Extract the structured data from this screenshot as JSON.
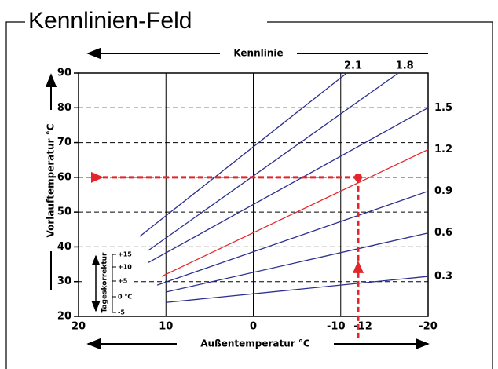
{
  "chart_data": {
    "type": "line",
    "title": "Kennlinien-Feld",
    "curve_label": "Kennlinie",
    "x_label": "Außentemperatur °C",
    "y_label": "Vorlauftemperatur °C",
    "xlim": [
      20,
      -20
    ],
    "ylim": [
      20,
      90
    ],
    "xticks": [
      20,
      10,
      0,
      -10,
      -20
    ],
    "yticks": [
      20,
      30,
      40,
      50,
      60,
      70,
      80,
      90
    ],
    "vertical_grid": [
      10,
      0,
      -10
    ],
    "dashed_grid": [
      30,
      40,
      50,
      60,
      70,
      80
    ],
    "series": [
      {
        "name": "2.1",
        "color": "#2b2f8f",
        "x": [
          13,
          -10.7
        ],
        "values": [
          43,
          90
        ]
      },
      {
        "name": "1.8",
        "color": "#2b2f8f",
        "x": [
          12,
          -16.6
        ],
        "values": [
          39,
          90
        ]
      },
      {
        "name": "1.5",
        "color": "#2b2f8f",
        "x": [
          12,
          -20
        ],
        "values": [
          35.5,
          80
        ]
      },
      {
        "name": "1.2",
        "color": "#e3262b",
        "x": [
          10.5,
          -20
        ],
        "values": [
          31.5,
          68
        ]
      },
      {
        "name": "0.9",
        "color": "#2b2f8f",
        "x": [
          11,
          -20
        ],
        "values": [
          29,
          56
        ]
      },
      {
        "name": "0.6",
        "color": "#2b2f8f",
        "x": [
          10,
          -20
        ],
        "values": [
          27,
          44
        ]
      },
      {
        "name": "0.3",
        "color": "#2b2f8f",
        "x": [
          10,
          -20
        ],
        "values": [
          24,
          31.5
        ]
      }
    ],
    "marker": {
      "x": -12,
      "y": 60,
      "color": "#e3262b"
    },
    "correction": {
      "title": "Tageskorrektur",
      "labels": [
        "+15",
        "+10",
        "+5",
        "0 °C",
        "-5"
      ]
    }
  }
}
